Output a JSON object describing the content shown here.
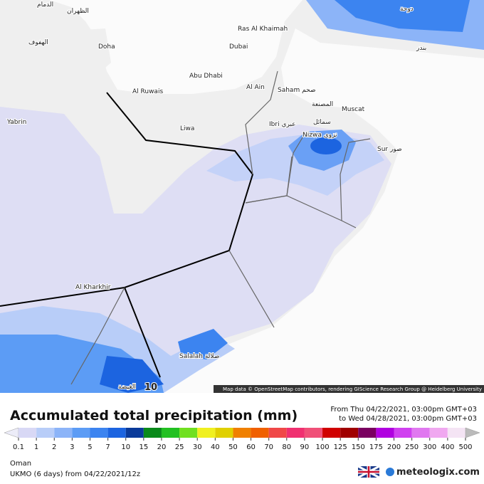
{
  "map": {
    "labels": [
      "الدمام",
      "الظهران",
      "الهفوف",
      "Doha",
      "Ras Al Khaimah",
      "Dubai",
      "Abu Dhabi",
      "Al Ruwais",
      "Al Ain",
      "Saham صحم",
      "المصنعة",
      "Muscat",
      "Ibri عبري",
      "سمائل",
      "Nizwa نزوى",
      "Sur صور",
      "Liwa",
      "Yabrin",
      "Al Kharkhir",
      "Salalah صلالة",
      "الغيضة",
      "دوحة",
      "بندر"
    ],
    "scale_label": "10",
    "attribution": "Map data © OpenStreetMap contributors, rendering GIScience Research Group @ Heidelberg University"
  },
  "legend": {
    "title": "Accumulated total precipitation (mm)",
    "from": "From Thu 04/22/2021, 03:00pm GMT+03",
    "to": "to Wed 04/28/2021, 03:00pm GMT+03",
    "ticks": [
      0.1,
      1,
      2,
      3,
      5,
      7,
      10,
      15,
      20,
      25,
      30,
      40,
      50,
      60,
      70,
      80,
      90,
      100,
      125,
      150,
      175,
      200,
      250,
      300,
      400,
      500
    ],
    "under_color": "#ececf8",
    "colors": [
      "#d8d8f5",
      "#b8cdf8",
      "#8cb4f8",
      "#5c9cf5",
      "#3c84f0",
      "#1c64e0",
      "#0a3a9a",
      "#0a8a1a",
      "#22c022",
      "#70e020",
      "#f0f020",
      "#e0d000",
      "#f08000",
      "#f06000",
      "#f04848",
      "#f03070",
      "#f05078",
      "#d00000",
      "#a00000",
      "#7a0060",
      "#b000e0",
      "#d040f0",
      "#e078f0",
      "#f0a8f0",
      "#f4e4f4"
    ],
    "over_color": "#bbbbbb"
  },
  "footer": {
    "region": "Oman",
    "model": "UKMO (6 days) from 04/22/2021/12z",
    "brand": "meteologix.com"
  }
}
